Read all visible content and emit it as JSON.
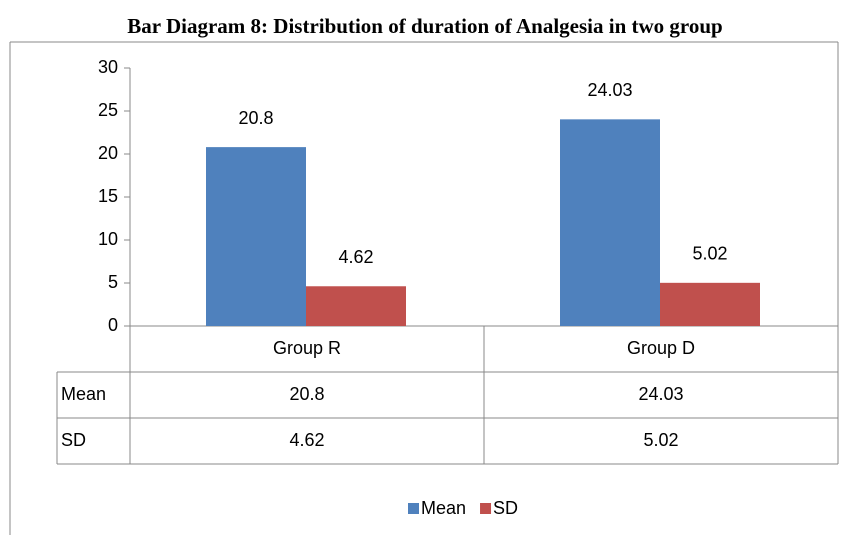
{
  "chart_data": {
    "type": "bar",
    "title": "Bar Diagram 8: Distribution of duration of Analgesia in two group",
    "categories": [
      "Group R",
      "Group D"
    ],
    "series": [
      {
        "name": "Mean",
        "color": "#4f81bd",
        "values": [
          20.8,
          24.03
        ]
      },
      {
        "name": "SD",
        "color": "#c0504d",
        "values": [
          4.62,
          5.02
        ]
      }
    ],
    "ylim": [
      0,
      30
    ],
    "yticks": [
      0,
      5,
      10,
      15,
      20,
      25,
      30
    ],
    "legend": "bottom"
  }
}
